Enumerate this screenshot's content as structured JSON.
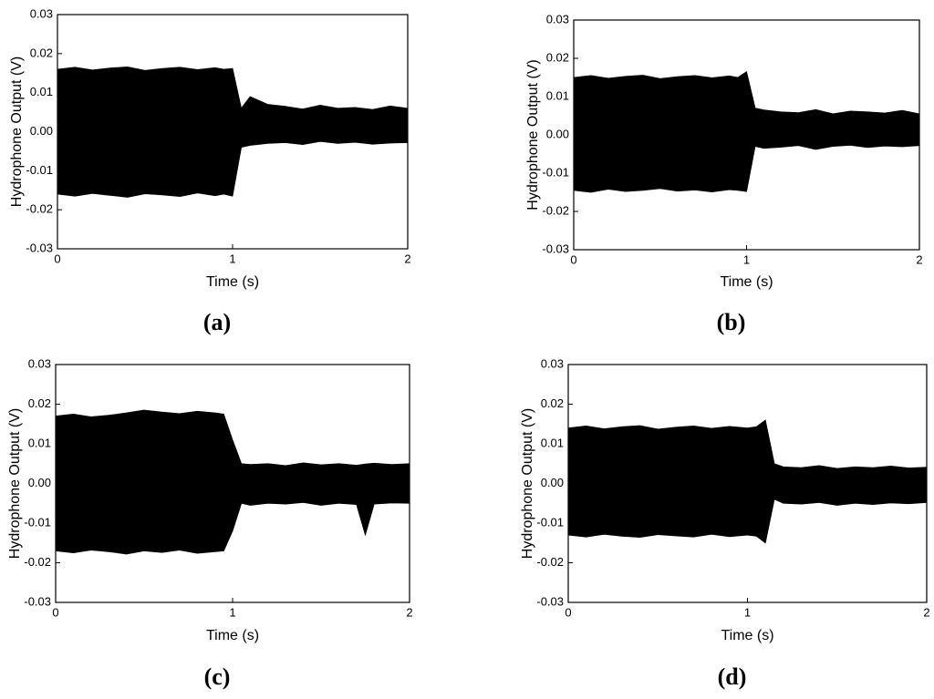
{
  "chart_data": [
    {
      "type": "area",
      "panel_label": "(a)",
      "xlabel": "Time (s)",
      "ylabel": "Hydrophone Output (V)",
      "xlim": [
        0,
        2
      ],
      "xticks": [
        0,
        1,
        2
      ],
      "ylim": [
        -0.03,
        0.03
      ],
      "yticks": [
        -0.03,
        -0.02,
        -0.01,
        {
          "value": 0,
          "label": "0.00"
        },
        0.01,
        0.02,
        0.03
      ],
      "x": [
        0,
        0.1,
        0.2,
        0.3,
        0.4,
        0.5,
        0.6,
        0.7,
        0.8,
        0.9,
        0.95,
        1.0,
        1.05,
        1.1,
        1.2,
        1.3,
        1.4,
        1.5,
        1.6,
        1.7,
        1.8,
        1.9,
        2.0
      ],
      "series": [
        {
          "color": "#000000",
          "values": [
            0.016,
            0.0165,
            0.0158,
            0.0163,
            0.0166,
            0.0157,
            0.0162,
            0.0165,
            0.0159,
            0.0164,
            0.016,
            0.0162,
            0.006,
            0.009,
            0.007,
            0.0065,
            0.0058,
            0.0068,
            0.006,
            0.0062,
            0.0057,
            0.0066,
            0.006
          ]
        },
        {
          "color": "#000000",
          "values": [
            -0.016,
            -0.0165,
            -0.0158,
            -0.0163,
            -0.0168,
            -0.0159,
            -0.0162,
            -0.0166,
            -0.0157,
            -0.0164,
            -0.016,
            -0.0165,
            -0.004,
            -0.0035,
            -0.003,
            -0.0028,
            -0.0033,
            -0.0025,
            -0.003,
            -0.0027,
            -0.0032,
            -0.0029,
            -0.0028
          ]
        }
      ]
    },
    {
      "type": "area",
      "panel_label": "(b)",
      "xlabel": "Time (s)",
      "ylabel": "Hydrophone Output (V)",
      "xlim": [
        0,
        2
      ],
      "xticks": [
        0,
        1,
        2
      ],
      "ylim": [
        -0.03,
        0.03
      ],
      "yticks": [
        -0.03,
        -0.02,
        -0.01,
        {
          "value": 0,
          "label": "0.00"
        },
        0.01,
        0.02,
        0.03
      ],
      "x": [
        0,
        0.1,
        0.2,
        0.3,
        0.4,
        0.5,
        0.6,
        0.7,
        0.8,
        0.9,
        0.95,
        1.0,
        1.05,
        1.1,
        1.2,
        1.3,
        1.4,
        1.5,
        1.6,
        1.7,
        1.8,
        1.9,
        2.0
      ],
      "series": [
        {
          "color": "#000000",
          "values": [
            0.015,
            0.0155,
            0.0148,
            0.0153,
            0.0156,
            0.0147,
            0.0152,
            0.0155,
            0.0149,
            0.0154,
            0.015,
            0.0165,
            0.007,
            0.0065,
            0.006,
            0.0058,
            0.0066,
            0.0055,
            0.0062,
            0.006,
            0.0057,
            0.0064,
            0.0055
          ]
        },
        {
          "color": "#000000",
          "values": [
            -0.0145,
            -0.015,
            -0.0142,
            -0.0148,
            -0.0145,
            -0.014,
            -0.0147,
            -0.0144,
            -0.0149,
            -0.0143,
            -0.0145,
            -0.0148,
            -0.003,
            -0.0035,
            -0.0032,
            -0.0028,
            -0.0038,
            -0.003,
            -0.0027,
            -0.0033,
            -0.0029,
            -0.0031,
            -0.0028
          ]
        }
      ]
    },
    {
      "type": "area",
      "panel_label": "(c)",
      "xlabel": "Time (s)",
      "ylabel": "Hydrophone Output (V)",
      "xlim": [
        0,
        2
      ],
      "xticks": [
        0,
        1,
        2
      ],
      "ylim": [
        -0.03,
        0.03
      ],
      "yticks": [
        -0.03,
        -0.02,
        -0.01,
        {
          "value": 0,
          "label": "0.00"
        },
        0.01,
        0.02,
        0.03
      ],
      "x": [
        0,
        0.1,
        0.2,
        0.3,
        0.4,
        0.5,
        0.6,
        0.7,
        0.8,
        0.9,
        0.95,
        1.0,
        1.05,
        1.1,
        1.2,
        1.3,
        1.4,
        1.5,
        1.6,
        1.7,
        1.75,
        1.8,
        1.9,
        2.0
      ],
      "series": [
        {
          "color": "#000000",
          "values": [
            0.017,
            0.0175,
            0.0168,
            0.0172,
            0.0178,
            0.0185,
            0.018,
            0.0176,
            0.0182,
            0.0178,
            0.0175,
            0.011,
            0.005,
            0.0048,
            0.005,
            0.0045,
            0.0052,
            0.0047,
            0.005,
            0.0046,
            0.0049,
            0.0051,
            0.0048,
            0.005
          ]
        },
        {
          "color": "#000000",
          "values": [
            -0.017,
            -0.0175,
            -0.0168,
            -0.0172,
            -0.0178,
            -0.017,
            -0.0174,
            -0.0168,
            -0.0176,
            -0.0172,
            -0.017,
            -0.012,
            -0.005,
            -0.0055,
            -0.005,
            -0.0052,
            -0.0048,
            -0.0055,
            -0.005,
            -0.0053,
            -0.013,
            -0.0052,
            -0.0049,
            -0.005
          ]
        }
      ]
    },
    {
      "type": "area",
      "panel_label": "(d)",
      "xlabel": "Time (s)",
      "ylabel": "Hydrophone Output (V)",
      "xlim": [
        0,
        2
      ],
      "xticks": [
        0,
        1,
        2
      ],
      "ylim": [
        -0.03,
        0.03
      ],
      "yticks": [
        -0.03,
        -0.02,
        -0.01,
        {
          "value": 0,
          "label": "0.00"
        },
        0.01,
        0.02,
        0.03
      ],
      "x": [
        0,
        0.1,
        0.2,
        0.3,
        0.4,
        0.5,
        0.6,
        0.7,
        0.8,
        0.9,
        1.0,
        1.05,
        1.1,
        1.15,
        1.2,
        1.3,
        1.4,
        1.5,
        1.6,
        1.7,
        1.8,
        1.9,
        2.0
      ],
      "series": [
        {
          "color": "#000000",
          "values": [
            0.014,
            0.0145,
            0.0138,
            0.0143,
            0.0146,
            0.0137,
            0.0142,
            0.0145,
            0.0139,
            0.0144,
            0.014,
            0.0143,
            0.016,
            0.005,
            0.0042,
            0.004,
            0.0045,
            0.0038,
            0.0042,
            0.004,
            0.0044,
            0.0039,
            0.0041
          ]
        },
        {
          "color": "#000000",
          "values": [
            -0.013,
            -0.0135,
            -0.0128,
            -0.0133,
            -0.0136,
            -0.0129,
            -0.0132,
            -0.0135,
            -0.0128,
            -0.0134,
            -0.013,
            -0.0133,
            -0.015,
            -0.004,
            -0.005,
            -0.0052,
            -0.0048,
            -0.0055,
            -0.005,
            -0.0053,
            -0.0049,
            -0.0051,
            -0.0048
          ]
        }
      ]
    }
  ]
}
